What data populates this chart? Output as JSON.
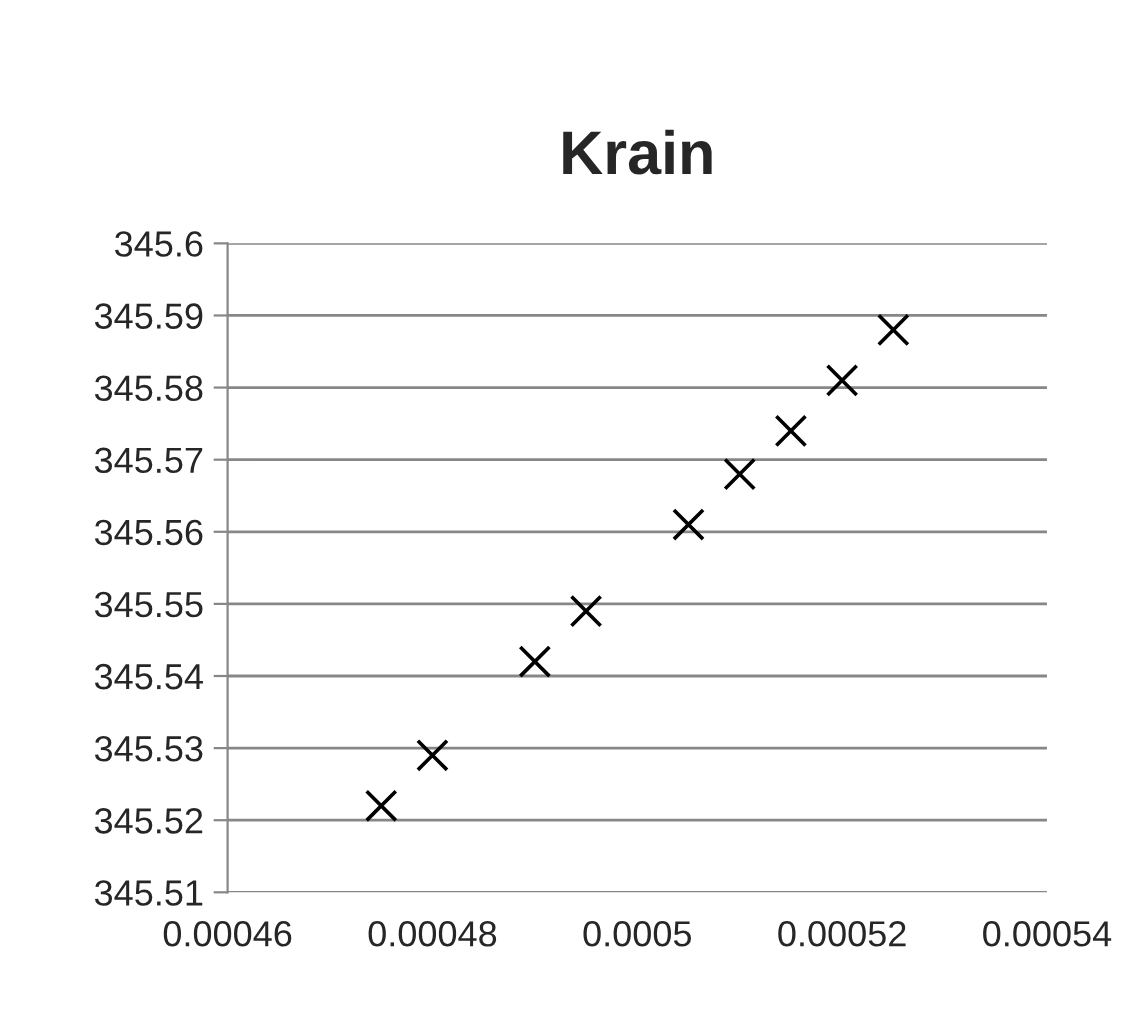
{
  "chart_data": {
    "type": "scatter",
    "title": "Krain",
    "x": [
      0.000475,
      0.00048,
      0.00049,
      0.000495,
      0.000505,
      0.00051,
      0.000515,
      0.00052,
      0.000525
    ],
    "series": [
      {
        "color": "#000000",
        "values": [
          345.522,
          345.529,
          345.542,
          345.549,
          345.561,
          345.568,
          345.574,
          345.581,
          345.588
        ]
      }
    ],
    "xlim": [
      0.00046,
      0.00054
    ],
    "xticks": [
      0.00046,
      0.00048,
      0.0005,
      0.00052,
      0.00054
    ],
    "ylim": [
      345.51,
      345.6
    ],
    "yticks": [
      345.51,
      345.52,
      345.53,
      345.54,
      345.55,
      345.56,
      345.57,
      345.58,
      345.59,
      345.6
    ],
    "grid": "y",
    "marker": "cross",
    "legend": false
  }
}
